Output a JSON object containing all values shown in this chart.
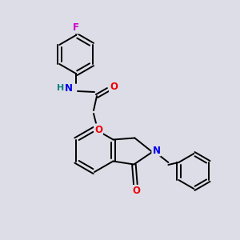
{
  "background_color": "#dddde8",
  "bond_color": "#000000",
  "atom_colors": {
    "F": "#cc00cc",
    "N": "#0000ee",
    "O": "#ee0000",
    "H": "#008080",
    "C": "#000000"
  },
  "figsize": [
    3.0,
    3.0
  ],
  "dpi": 100
}
